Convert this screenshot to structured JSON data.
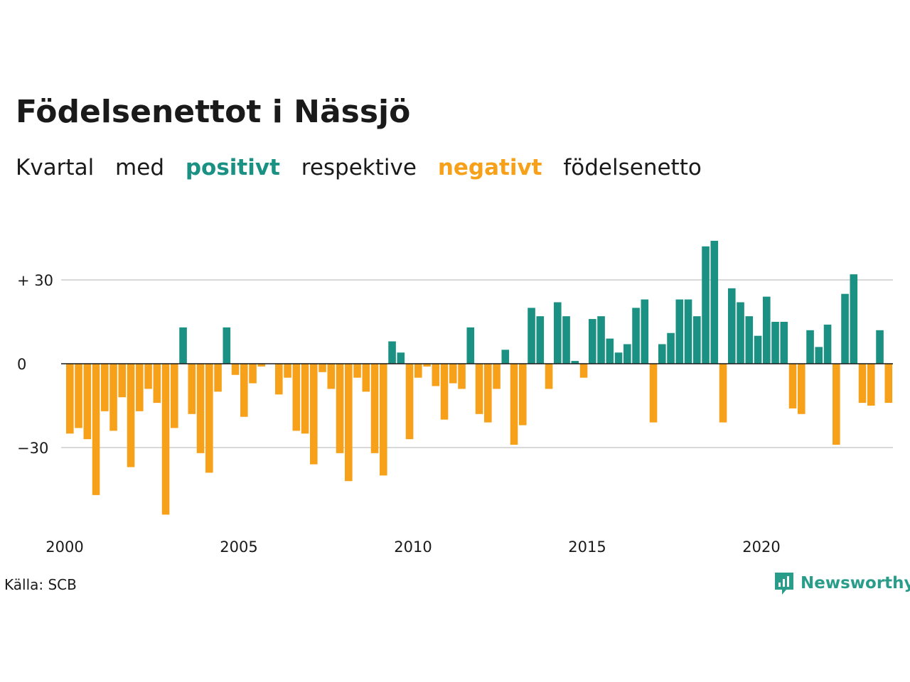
{
  "title": "Födelsenettot i Nässjö",
  "subtitle": {
    "part1": "Kvartal",
    "part2": "med",
    "positive": "positivt",
    "part3": "respektive",
    "negative": "negativt",
    "part4": "födelsenetto"
  },
  "source": "Källa: SCB",
  "brand": {
    "name": "Newsworthy",
    "icon": "newsworthy-logo-icon"
  },
  "colors": {
    "positive": "#1a9182",
    "negative": "#f7a11a",
    "grid": "#d9d9d9",
    "zero_line": "#1a1a1a"
  },
  "chart_data": {
    "type": "bar",
    "title": "Födelsenettot i Nässjö",
    "xlabel": "",
    "ylabel": "",
    "ylim": [
      -54,
      46
    ],
    "yticks": [
      {
        "value": 30,
        "label": "+ 30"
      },
      {
        "value": 0,
        "label": "0"
      },
      {
        "value": -30,
        "label": "−30"
      }
    ],
    "xticks": [
      "2000",
      "2005",
      "2010",
      "2015",
      "2020"
    ],
    "grid": true,
    "start": "2000 Q1",
    "frequency": "quarterly",
    "values": [
      -25,
      -23,
      -27,
      -47,
      -17,
      -24,
      -12,
      -37,
      -17,
      -9,
      -14,
      -54,
      -23,
      13,
      -18,
      -32,
      -39,
      -10,
      13,
      -4,
      -19,
      -7,
      -1,
      0,
      -11,
      -5,
      -24,
      -25,
      -36,
      -3,
      -9,
      -32,
      -42,
      -5,
      -10,
      -32,
      -40,
      8,
      4,
      -27,
      -5,
      -1,
      -8,
      -20,
      -7,
      -9,
      13,
      -18,
      -21,
      -9,
      5,
      -29,
      -22,
      20,
      17,
      -9,
      22,
      17,
      1,
      -5,
      16,
      17,
      9,
      4,
      7,
      20,
      23,
      -21,
      7,
      11,
      23,
      23,
      17,
      42,
      44,
      -21,
      27,
      22,
      17,
      10,
      24,
      15,
      15,
      -16,
      -18,
      12,
      6,
      14,
      -29,
      25,
      32,
      -14,
      -15,
      12,
      -14
    ]
  }
}
